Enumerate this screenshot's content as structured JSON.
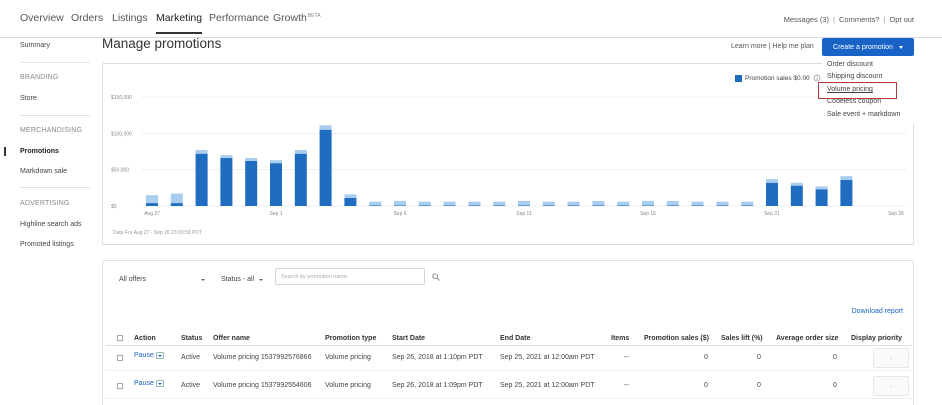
{
  "nav": {
    "tabs": [
      {
        "label": "Overview"
      },
      {
        "label": "Orders"
      },
      {
        "label": "Listings"
      },
      {
        "label": "Marketing"
      },
      {
        "label": "Performance"
      },
      {
        "label": "Growth",
        "badge": "BETA"
      }
    ],
    "active_tab": "Marketing",
    "messages": "Messages (3)",
    "comments": "Comments?",
    "opt_out": "Opt out"
  },
  "sidebar": {
    "summary": "Summary",
    "branding_header": "BRANDING",
    "store": "Store",
    "merchandising_header": "MERCHANDISING",
    "promotions": "Promotions",
    "markdown_sale": "Markdown sale",
    "advertising_header": "ADVERTISING",
    "highline_search_ads": "Highline search ads",
    "promoted_listings": "Promoted listings"
  },
  "header": {
    "title": "Manage promotions",
    "learn_more": "Learn more | Help me plan",
    "create_button": "Create a promotion"
  },
  "dropdown": {
    "items": [
      "Order discount",
      "Shipping discount",
      "Volume pricing",
      "Codeless coupon",
      "Sale event + markdown"
    ],
    "highlighted": "Volume pricing"
  },
  "chart_data": {
    "type": "bar",
    "legend": "Promotion sales $0.00",
    "ytick_labels": [
      "$150,000",
      "$100,000",
      "$50,000",
      "$0"
    ],
    "yticks": [
      150000,
      100000,
      50000,
      0
    ],
    "ylim": [
      0,
      150000
    ],
    "xtick_labels": [
      "Aug 27",
      "Sep 1",
      "Sep 6",
      "Sep 11",
      "Sep 16",
      "Sep 21",
      "Sep 26"
    ],
    "categories": [
      "Aug 27",
      "Aug 28",
      "Aug 29",
      "Aug 30",
      "Aug 31",
      "Sep 1",
      "Sep 2",
      "Sep 3",
      "Sep 4",
      "Sep 5",
      "Sep 6",
      "Sep 7",
      "Sep 8",
      "Sep 9",
      "Sep 10",
      "Sep 11",
      "Sep 12",
      "Sep 13",
      "Sep 14",
      "Sep 15",
      "Sep 16",
      "Sep 17",
      "Sep 18",
      "Sep 19",
      "Sep 20",
      "Sep 21",
      "Sep 22",
      "Sep 23",
      "Sep 24",
      "Sep 25",
      "Sep 26"
    ],
    "series": [
      {
        "name": "Promotion sales",
        "color": "#1f6cc1",
        "values": [
          4000,
          4000,
          72000,
          66000,
          62000,
          59000,
          72000,
          105000,
          11000,
          1000,
          1000,
          1000,
          1000,
          1000,
          1000,
          1000,
          1000,
          1000,
          1000,
          1000,
          1000,
          1000,
          1000,
          1000,
          1000,
          32000,
          28000,
          23000,
          36000,
          0,
          0
        ]
      },
      {
        "color": "#a9cdef",
        "values": [
          11000,
          13000,
          5000,
          4000,
          4000,
          4000,
          5000,
          6000,
          5000,
          5000,
          6000,
          5000,
          5000,
          5000,
          5000,
          6000,
          5000,
          5000,
          6000,
          5000,
          6000,
          6000,
          5000,
          5000,
          5000,
          5000,
          4000,
          4000,
          5000,
          0,
          0
        ]
      }
    ],
    "grid": true
  },
  "data_note": "Data For Aug 27 - Sep 26 23:00:59 PDT",
  "filters": {
    "offers": "All offers",
    "status": "Status - all",
    "search_placeholder": "Search by promotion name"
  },
  "download_report": "Download report",
  "table": {
    "columns": [
      "Action",
      "Status",
      "Offer name",
      "Promotion type",
      "Start Date",
      "End Date",
      "Items",
      "Promotion sales ($)",
      "Sales lift (%)",
      "Average order size",
      "Display priority"
    ],
    "rows": [
      {
        "action": "Pause",
        "status": "Active",
        "offer_name": "Volume pricing 1537992576866",
        "type": "Volume pricing",
        "start": "Sep 26, 2018 at 1:10pm PDT",
        "end": "Sep 25, 2021 at 12:00am PDT",
        "items": "--",
        "sales": "0",
        "lift": "0",
        "aos": "0"
      },
      {
        "action": "Pause",
        "status": "Active",
        "offer_name": "Volume pricing 1537992554606",
        "type": "Volume pricing",
        "start": "Sep 26, 2018 at 1:09pm PDT",
        "end": "Sep 25, 2021 at 12:00am PDT",
        "items": "--",
        "sales": "0",
        "lift": "0",
        "aos": "0"
      }
    ]
  }
}
